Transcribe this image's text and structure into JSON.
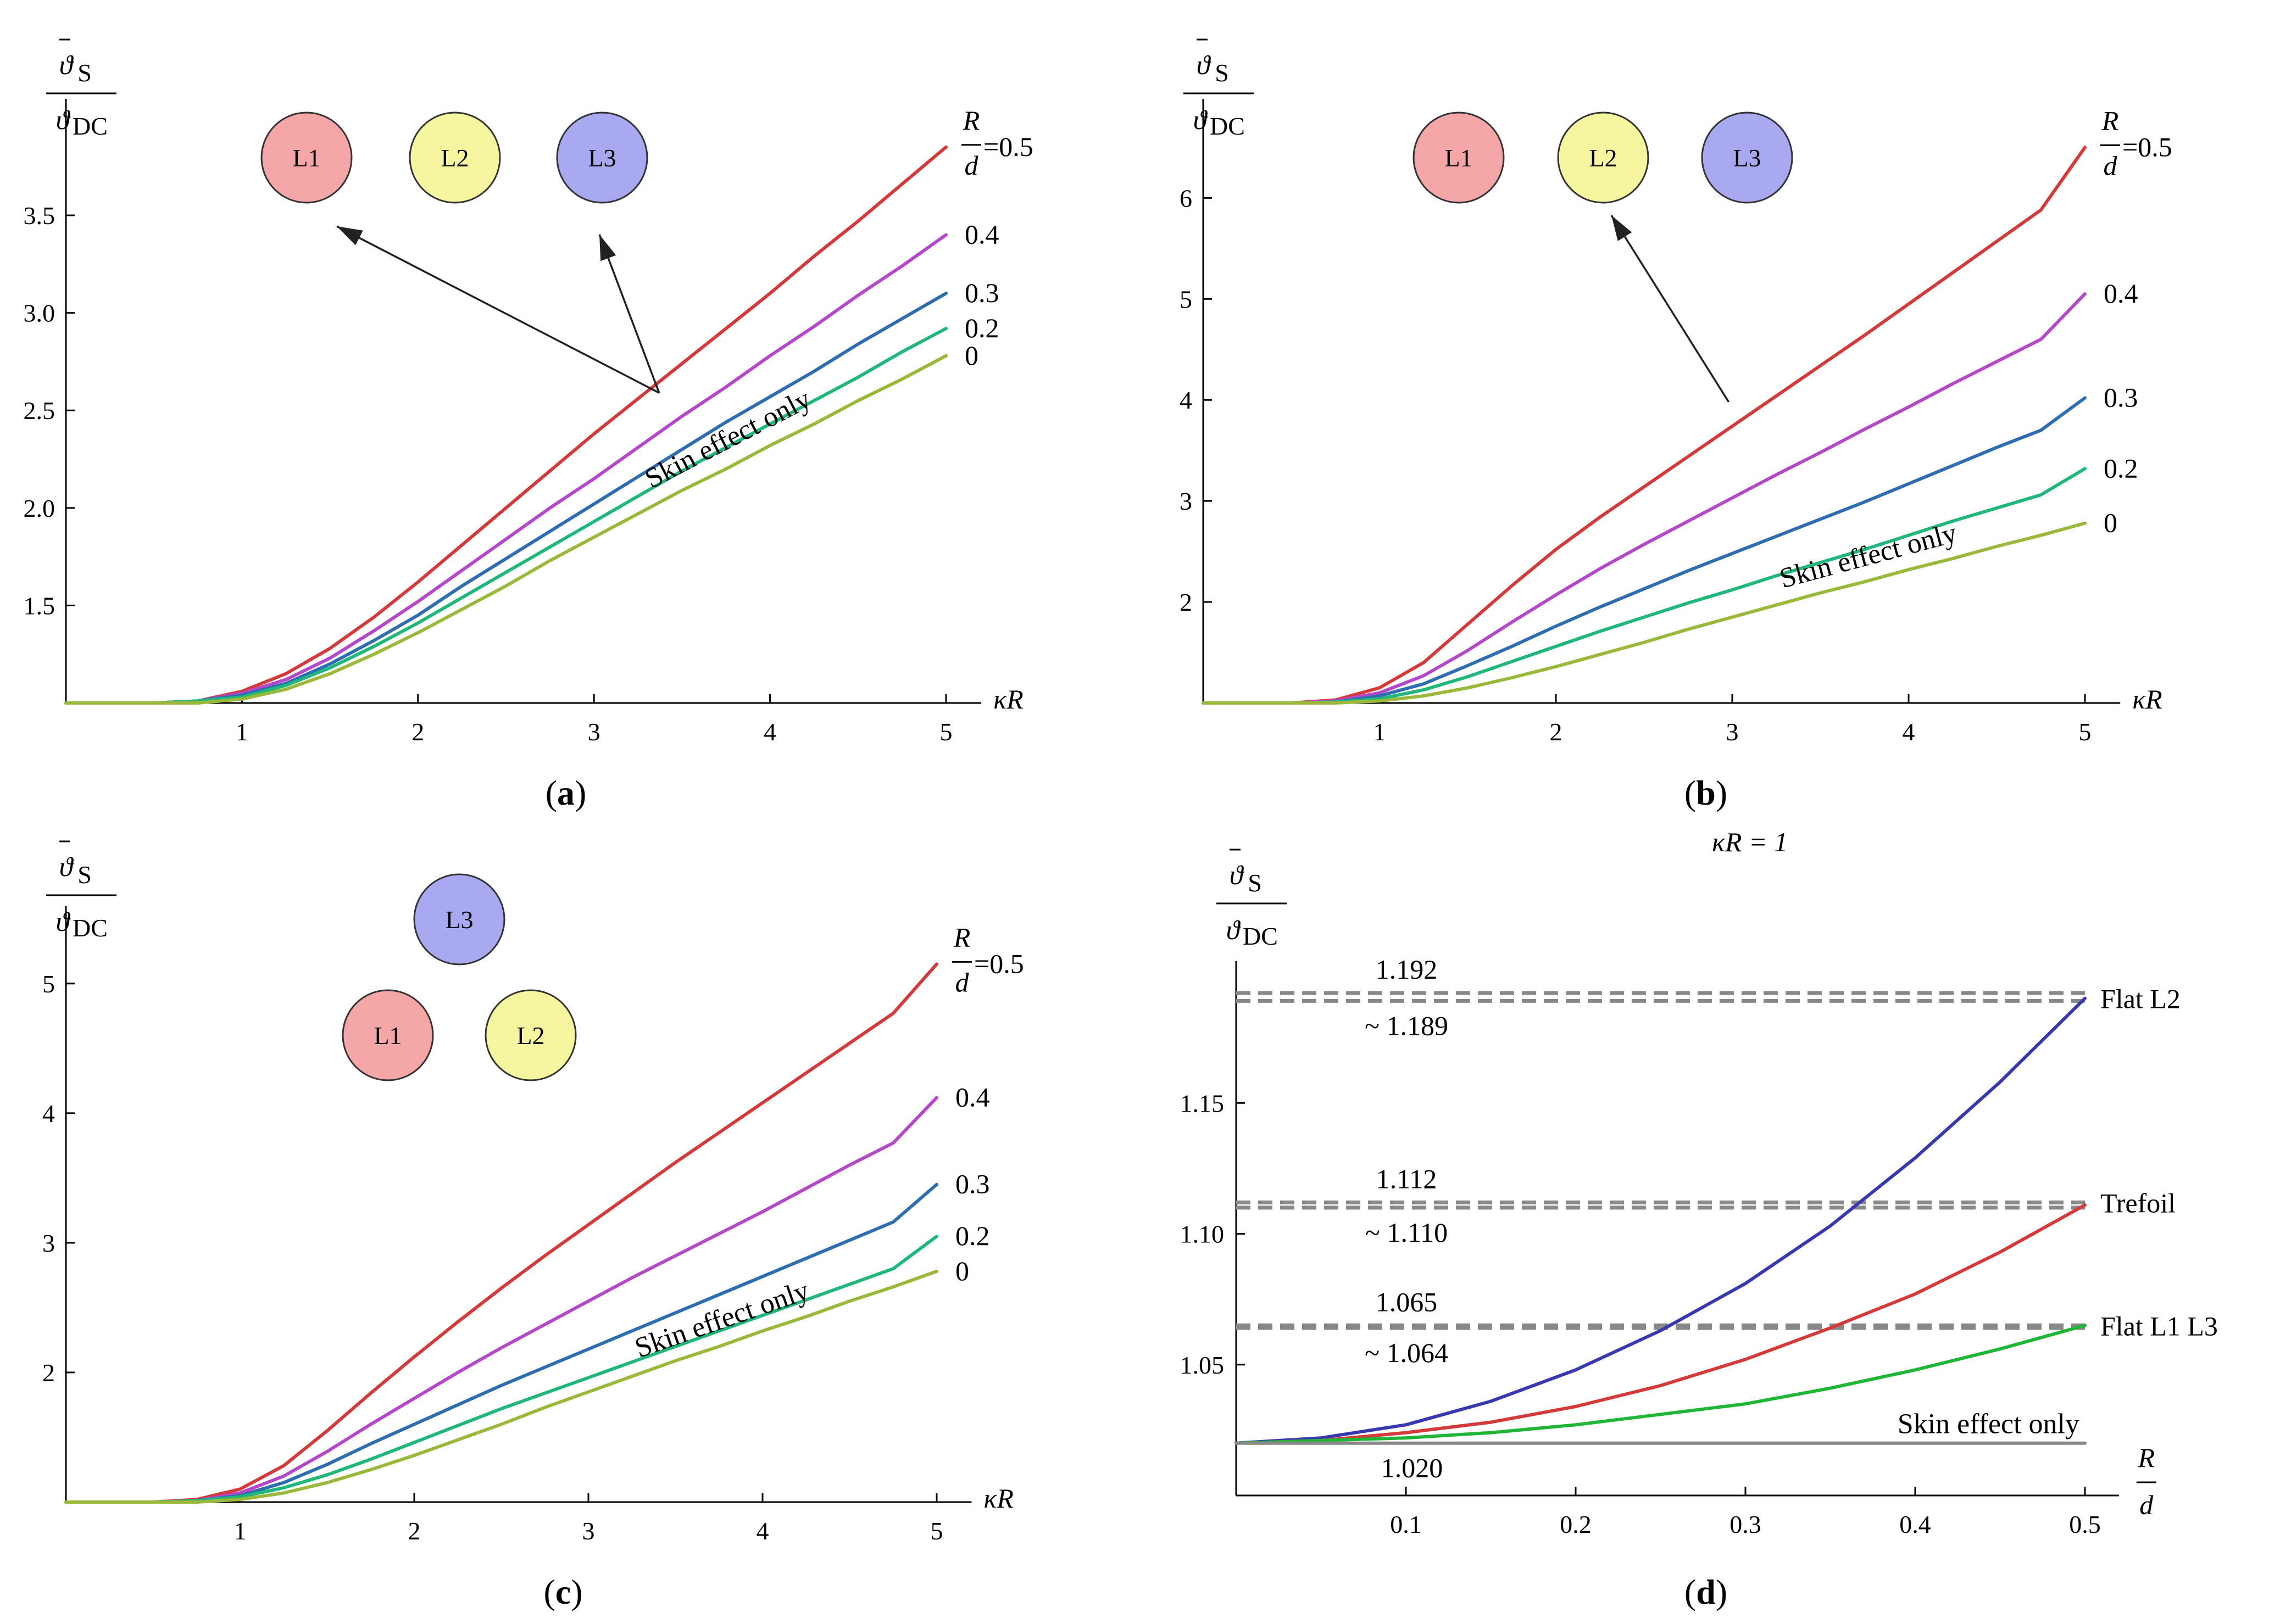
{
  "colors": {
    "r05": "#d43a3a",
    "r04": "#b547c9",
    "r03": "#2f6db1",
    "r02": "#1fb77a",
    "r0": "#9ab83a",
    "flatL2": "#3838b0",
    "trefoil": "#d43a3a",
    "flatL1L3": "#1fb535",
    "skin": "#888888",
    "conductorL1": "#f5a6a6",
    "conductorL2": "#f7f6a0",
    "conductorL3": "#a9a9f2",
    "dashed": "#888888"
  },
  "y_axis_label": {
    "numerator": "ϑ",
    "numerator_sub": "S",
    "denominator": "ϑ",
    "denominator_sub": "DC"
  },
  "ratio_label": {
    "num": "R",
    "den": "d",
    "first": "=0.5"
  },
  "skin_label": "Skin effect only",
  "conductors": [
    "L1",
    "L2",
    "L3"
  ],
  "chart_data": [
    {
      "id": "a",
      "caption": "a",
      "type": "line",
      "layout": "flat",
      "arrows_to": [
        "L1",
        "L3"
      ],
      "xlabel": "κR",
      "xlim": [
        0,
        5.2
      ],
      "ylim": [
        1,
        3.9
      ],
      "xticks": [
        1,
        2,
        3,
        4,
        5
      ],
      "yticks": [
        1.5,
        2.0,
        2.5,
        3.0,
        3.5
      ],
      "ytick_labels": [
        "1.5",
        "2.0",
        "2.5",
        "3.0",
        "3.5"
      ],
      "x": [
        0,
        0.5,
        0.75,
        1,
        1.25,
        1.5,
        1.75,
        2,
        2.25,
        2.5,
        2.75,
        3,
        3.25,
        3.5,
        3.75,
        4,
        4.25,
        4.5,
        4.75,
        5
      ],
      "series": [
        {
          "label": "=0.5",
          "end": 3.85,
          "values": [
            1.0,
            1.0,
            1.01,
            1.06,
            1.15,
            1.28,
            1.44,
            1.62,
            1.81,
            2.0,
            2.19,
            2.38,
            2.56,
            2.74,
            2.92,
            3.1,
            3.29,
            3.47,
            3.66,
            3.85
          ]
        },
        {
          "label": "0.4",
          "end": 3.4,
          "values": [
            1.0,
            1.0,
            1.01,
            1.05,
            1.12,
            1.23,
            1.37,
            1.52,
            1.68,
            1.84,
            2.0,
            2.15,
            2.31,
            2.47,
            2.62,
            2.78,
            2.93,
            3.09,
            3.24,
            3.4
          ]
        },
        {
          "label": "0.3",
          "end": 3.1,
          "values": [
            1.0,
            1.0,
            1.01,
            1.04,
            1.1,
            1.2,
            1.32,
            1.45,
            1.6,
            1.74,
            1.88,
            2.02,
            2.16,
            2.3,
            2.44,
            2.57,
            2.7,
            2.84,
            2.97,
            3.1
          ]
        },
        {
          "label": "0.2",
          "end": 2.92,
          "values": [
            1.0,
            1.0,
            1.01,
            1.03,
            1.09,
            1.18,
            1.29,
            1.41,
            1.54,
            1.67,
            1.8,
            1.93,
            2.06,
            2.19,
            2.31,
            2.43,
            2.55,
            2.67,
            2.8,
            2.92
          ]
        },
        {
          "label": "0",
          "end": 2.78,
          "values": [
            1.0,
            1.0,
            1.0,
            1.02,
            1.07,
            1.15,
            1.25,
            1.36,
            1.48,
            1.6,
            1.73,
            1.85,
            1.97,
            2.09,
            2.2,
            2.32,
            2.43,
            2.55,
            2.66,
            2.78
          ]
        }
      ]
    },
    {
      "id": "b",
      "caption": "b",
      "type": "line",
      "layout": "flat",
      "arrows_to": [
        "L2"
      ],
      "xlabel": "κR",
      "xlim": [
        0,
        5.2
      ],
      "ylim": [
        1,
        6.6
      ],
      "xticks": [
        1,
        2,
        3,
        4,
        5
      ],
      "yticks": [
        2,
        3,
        4,
        5,
        6
      ],
      "ytick_labels": [
        "2",
        "3",
        "4",
        "5",
        "6"
      ],
      "x": [
        0,
        0.5,
        0.75,
        1,
        1.25,
        1.5,
        1.75,
        2,
        2.25,
        2.5,
        2.75,
        3,
        3.25,
        3.5,
        3.75,
        4,
        4.25,
        4.5,
        4.75,
        5
      ],
      "series": [
        {
          "label": "=0.5",
          "end": 6.5,
          "values": [
            1.0,
            1.0,
            1.03,
            1.15,
            1.4,
            1.78,
            2.16,
            2.52,
            2.84,
            3.14,
            3.44,
            3.74,
            4.04,
            4.34,
            4.64,
            4.95,
            5.26,
            5.57,
            5.88,
            6.5
          ]
        },
        {
          "label": "0.4",
          "end": 5.05,
          "values": [
            1.0,
            1.0,
            1.02,
            1.1,
            1.27,
            1.52,
            1.8,
            2.07,
            2.33,
            2.57,
            2.8,
            3.03,
            3.26,
            3.48,
            3.71,
            3.93,
            4.16,
            4.38,
            4.6,
            5.05
          ]
        },
        {
          "label": "0.3",
          "end": 4.02,
          "values": [
            1.0,
            1.0,
            1.01,
            1.07,
            1.19,
            1.37,
            1.56,
            1.76,
            1.95,
            2.13,
            2.31,
            2.48,
            2.65,
            2.82,
            2.99,
            3.17,
            3.35,
            3.53,
            3.7,
            4.02
          ]
        },
        {
          "label": "0.2",
          "end": 3.32,
          "values": [
            1.0,
            1.0,
            1.01,
            1.04,
            1.13,
            1.26,
            1.41,
            1.56,
            1.71,
            1.85,
            1.99,
            2.12,
            2.26,
            2.39,
            2.52,
            2.66,
            2.8,
            2.93,
            3.06,
            3.32
          ]
        },
        {
          "label": "0",
          "end": 2.78,
          "values": [
            1.0,
            1.0,
            1.0,
            1.02,
            1.07,
            1.15,
            1.25,
            1.36,
            1.48,
            1.6,
            1.73,
            1.85,
            1.97,
            2.09,
            2.2,
            2.32,
            2.43,
            2.55,
            2.66,
            2.78
          ]
        }
      ]
    },
    {
      "id": "c",
      "caption": "c",
      "type": "line",
      "layout": "trefoil",
      "arrows_to": [],
      "xlabel": "κR",
      "xlim": [
        0,
        5.2
      ],
      "ylim": [
        1,
        5.3
      ],
      "xticks": [
        1,
        2,
        3,
        4,
        5
      ],
      "yticks": [
        2,
        3,
        4,
        5
      ],
      "ytick_labels": [
        "2",
        "3",
        "4",
        "5"
      ],
      "x": [
        0,
        0.5,
        0.75,
        1,
        1.25,
        1.5,
        1.75,
        2,
        2.25,
        2.5,
        2.75,
        3,
        3.25,
        3.5,
        3.75,
        4,
        4.25,
        4.5,
        4.75,
        5
      ],
      "series": [
        {
          "label": "=0.5",
          "end": 5.15,
          "values": [
            1.0,
            1.0,
            1.02,
            1.1,
            1.28,
            1.55,
            1.84,
            2.12,
            2.39,
            2.65,
            2.9,
            3.14,
            3.38,
            3.62,
            3.85,
            4.08,
            4.31,
            4.54,
            4.77,
            5.15
          ]
        },
        {
          "label": "0.4",
          "end": 4.12,
          "values": [
            1.0,
            1.0,
            1.01,
            1.07,
            1.2,
            1.39,
            1.6,
            1.8,
            2.0,
            2.19,
            2.37,
            2.55,
            2.73,
            2.9,
            3.07,
            3.24,
            3.42,
            3.6,
            3.77,
            4.12
          ]
        },
        {
          "label": "0.3",
          "end": 3.45,
          "values": [
            1.0,
            1.0,
            1.01,
            1.05,
            1.15,
            1.29,
            1.45,
            1.6,
            1.75,
            1.9,
            2.04,
            2.18,
            2.32,
            2.46,
            2.6,
            2.74,
            2.88,
            3.02,
            3.16,
            3.45
          ]
        },
        {
          "label": "0.2",
          "end": 3.05,
          "values": [
            1.0,
            1.0,
            1.01,
            1.04,
            1.11,
            1.21,
            1.33,
            1.46,
            1.59,
            1.72,
            1.84,
            1.96,
            2.08,
            2.2,
            2.32,
            2.44,
            2.56,
            2.68,
            2.8,
            3.05
          ]
        },
        {
          "label": "0",
          "end": 2.78,
          "values": [
            1.0,
            1.0,
            1.0,
            1.02,
            1.07,
            1.15,
            1.25,
            1.36,
            1.48,
            1.6,
            1.73,
            1.85,
            1.97,
            2.09,
            2.2,
            2.32,
            2.43,
            2.55,
            2.66,
            2.78
          ]
        }
      ]
    },
    {
      "id": "d",
      "caption": "d",
      "type": "line",
      "title": "κR = 1",
      "xlabel_num": "R",
      "xlabel_den": "d",
      "xlim": [
        0,
        0.52
      ],
      "ylim": [
        1.0,
        1.2
      ],
      "xticks": [
        0.1,
        0.2,
        0.3,
        0.4,
        0.5
      ],
      "xtick_labels": [
        "0.1",
        "0.2",
        "0.3",
        "0.4",
        "0.5"
      ],
      "yticks": [
        1.05,
        1.1,
        1.15
      ],
      "ytick_labels": [
        "1.05",
        "1.10",
        "1.15"
      ],
      "x": [
        0,
        0.05,
        0.1,
        0.15,
        0.2,
        0.25,
        0.3,
        0.35,
        0.4,
        0.45,
        0.5
      ],
      "series": [
        {
          "name": "Flat L2",
          "values": [
            1.02,
            1.022,
            1.027,
            1.036,
            1.048,
            1.063,
            1.081,
            1.103,
            1.129,
            1.158,
            1.19
          ]
        },
        {
          "name": "Trefoil",
          "values": [
            1.02,
            1.021,
            1.024,
            1.028,
            1.034,
            1.042,
            1.052,
            1.064,
            1.077,
            1.093,
            1.111
          ]
        },
        {
          "name": "Flat L1 L3",
          "values": [
            1.02,
            1.021,
            1.022,
            1.024,
            1.027,
            1.031,
            1.035,
            1.041,
            1.048,
            1.056,
            1.065
          ]
        },
        {
          "name": "Skin effect only",
          "values": [
            1.02,
            1.02,
            1.02,
            1.02,
            1.02,
            1.02,
            1.02,
            1.02,
            1.02,
            1.02,
            1.02
          ]
        }
      ],
      "reference_lines": [
        {
          "y": 1.192,
          "label": "1.192",
          "position": "above"
        },
        {
          "y": 1.189,
          "label": "~ 1.189",
          "position": "below"
        },
        {
          "y": 1.112,
          "label": "1.112",
          "position": "above"
        },
        {
          "y": 1.11,
          "label": "~ 1.110",
          "position": "below"
        },
        {
          "y": 1.065,
          "label": "1.065",
          "position": "above"
        },
        {
          "y": 1.064,
          "label": "~ 1.064",
          "position": "below"
        }
      ],
      "skin_value_label": "1.020"
    }
  ]
}
